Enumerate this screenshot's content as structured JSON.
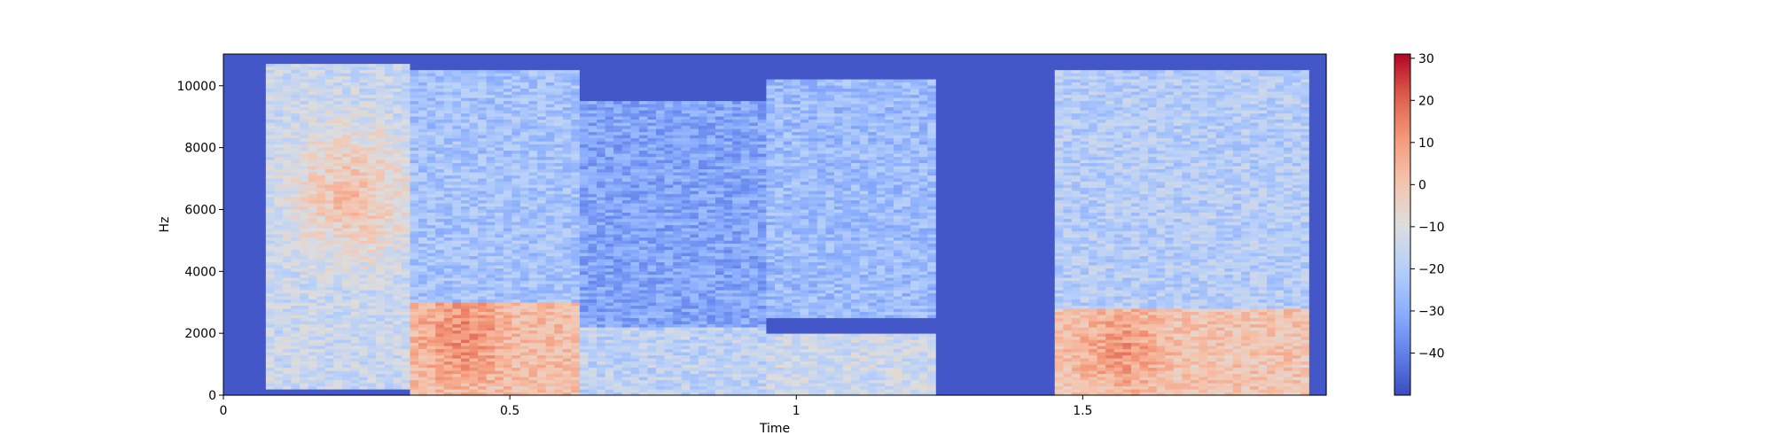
{
  "chart_data": {
    "type": "heatmap",
    "title": "",
    "xlabel": "Time",
    "ylabel": "Hz",
    "xlim": [
      0,
      1.925
    ],
    "ylim": [
      0,
      11025
    ],
    "x_ticks": [
      {
        "value": 0,
        "label": "0"
      },
      {
        "value": 0.5,
        "label": "0.5"
      },
      {
        "value": 1,
        "label": "1"
      },
      {
        "value": 1.5,
        "label": "1.5"
      }
    ],
    "y_ticks": [
      {
        "value": 0,
        "label": "0"
      },
      {
        "value": 2000,
        "label": "2000"
      },
      {
        "value": 4000,
        "label": "4000"
      },
      {
        "value": 6000,
        "label": "6000"
      },
      {
        "value": 8000,
        "label": "8000"
      },
      {
        "value": 10000,
        "label": "10000"
      }
    ],
    "colorbar": {
      "colormap": "coolwarm",
      "range": [
        -50,
        31
      ],
      "ticks": [
        {
          "value": 30,
          "label": "30"
        },
        {
          "value": 20,
          "label": "20"
        },
        {
          "value": 10,
          "label": "10"
        },
        {
          "value": 0,
          "label": "0"
        },
        {
          "value": -10,
          "label": "−10"
        },
        {
          "value": -20,
          "label": "−20"
        },
        {
          "value": -30,
          "label": "−30"
        },
        {
          "value": -40,
          "label": "−40"
        }
      ]
    },
    "floor_db": -48,
    "energy_regions": [
      {
        "t": [
          0.07,
          0.32
        ],
        "f": [
          200,
          10700
        ],
        "db": -15,
        "peak": {
          "t": 0.22,
          "f": 6500,
          "db": 3
        }
      },
      {
        "t": [
          0.32,
          0.62
        ],
        "f": [
          0,
          3000
        ],
        "db": 2,
        "peak": {
          "t": 0.42,
          "f": 1900,
          "db": 14
        }
      },
      {
        "t": [
          0.32,
          0.62
        ],
        "f": [
          3000,
          10500
        ],
        "db": -24
      },
      {
        "t": [
          0.62,
          0.95
        ],
        "f": [
          0,
          2200
        ],
        "db": -18
      },
      {
        "t": [
          0.62,
          0.95
        ],
        "f": [
          2200,
          9500
        ],
        "db": -32
      },
      {
        "t": [
          0.95,
          1.25
        ],
        "f": [
          0,
          2000
        ],
        "db": -14
      },
      {
        "t": [
          0.95,
          1.25
        ],
        "f": [
          2500,
          10200
        ],
        "db": -26
      },
      {
        "t": [
          1.45,
          1.9
        ],
        "f": [
          0,
          2800
        ],
        "db": 0,
        "peak": {
          "t": 1.57,
          "f": 1500,
          "db": 12
        }
      },
      {
        "t": [
          1.45,
          1.9
        ],
        "f": [
          2800,
          10500
        ],
        "db": -20
      }
    ]
  }
}
